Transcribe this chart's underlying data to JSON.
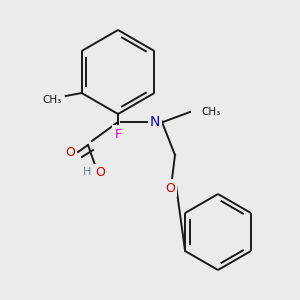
{
  "bg_color": "#ebebeb",
  "bond_color": "#1a1a1a",
  "atom_colors": {
    "O": "#cc0000",
    "N": "#0000cc",
    "F": "#cc00bb",
    "H": "#6a8a8a",
    "C": "#1a1a1a"
  },
  "figsize": [
    3.0,
    3.0
  ],
  "dpi": 100
}
